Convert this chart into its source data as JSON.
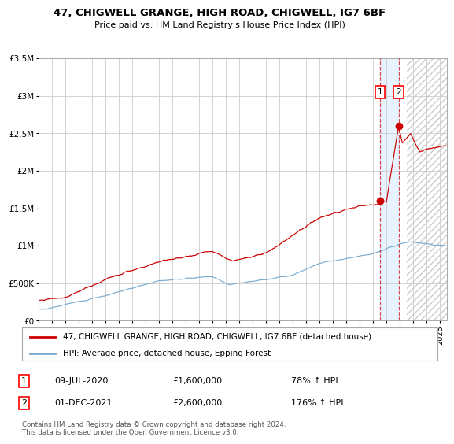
{
  "title": "47, CHIGWELL GRANGE, HIGH ROAD, CHIGWELL, IG7 6BF",
  "subtitle": "Price paid vs. HM Land Registry's House Price Index (HPI)",
  "red_label": "47, CHIGWELL GRANGE, HIGH ROAD, CHIGWELL, IG7 6BF (detached house)",
  "blue_label": "HPI: Average price, detached house, Epping Forest",
  "annotation1_date": "09-JUL-2020",
  "annotation1_price": "£1,600,000",
  "annotation1_hpi": "78% ↑ HPI",
  "annotation1_year": 2020.53,
  "annotation1_value": 1600000,
  "annotation2_date": "01-DEC-2021",
  "annotation2_price": "£2,600,000",
  "annotation2_hpi": "176% ↑ HPI",
  "annotation2_year": 2021.92,
  "annotation2_value": 2600000,
  "vline1_year": 2020.53,
  "vline2_year": 2021.92,
  "shaded_start": 2020.53,
  "shaded_end": 2021.92,
  "xmin": 1995,
  "xmax": 2025.5,
  "ymin": 0,
  "ymax": 3500000,
  "footer": "Contains HM Land Registry data © Crown copyright and database right 2024.\nThis data is licensed under the Open Government Licence v3.0.",
  "bg_color": "#ffffff",
  "plot_bg": "#ffffff",
  "grid_color": "#cccccc",
  "red_color": "#cc0000",
  "blue_color": "#7aabcf",
  "shaded_color": "#ddeeff",
  "hatch_color": "#dddddd"
}
